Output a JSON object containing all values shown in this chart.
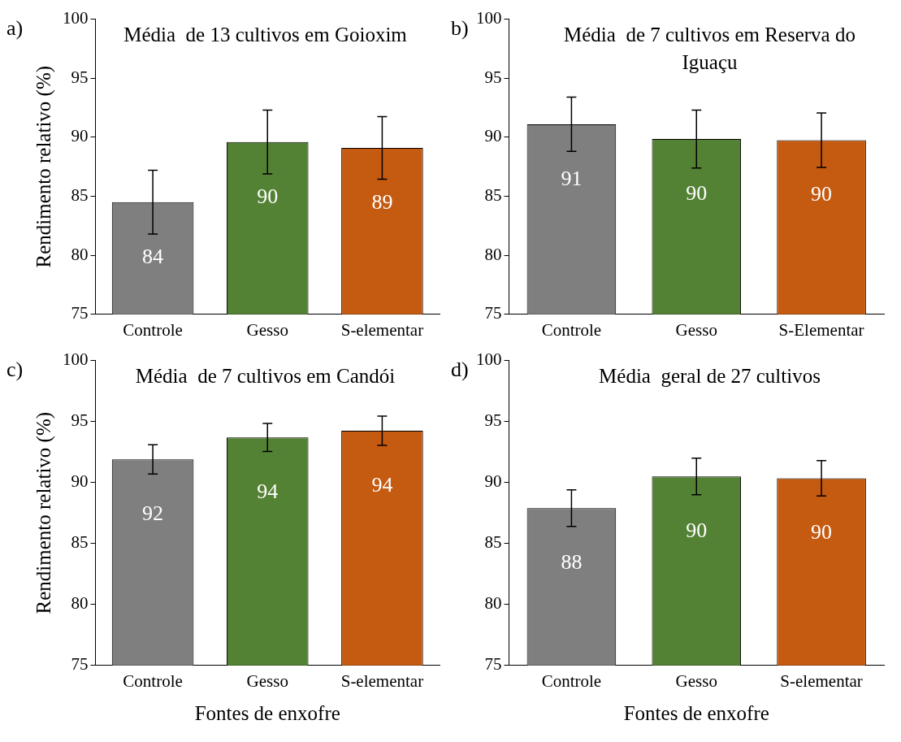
{
  "chart_data": [
    {
      "type": "bar",
      "title": "Média  de 13 cultivos em Goioxim",
      "ylabel": "Rendimento relativo (%)",
      "annotations": [
        "a)"
      ],
      "categories": [
        "Controle",
        "Gesso",
        "S-elementar"
      ],
      "values": [
        84.5,
        89.6,
        89.1
      ],
      "colors": [
        "#7f7f7f",
        "#548235",
        "#c55a11"
      ],
      "errors": [
        2.7,
        2.7,
        2.65
      ],
      "value_labels": [
        "84",
        "90",
        "89"
      ],
      "ylim": [
        75,
        100
      ],
      "yticks": [
        75,
        80,
        85,
        90,
        95,
        100
      ]
    },
    {
      "type": "bar",
      "title": "Média  de 7 cultivos em Reserva do Iguaçu",
      "annotations": [
        "b)"
      ],
      "categories": [
        "Controle",
        "Gesso",
        "S-Elementar"
      ],
      "values": [
        91.1,
        89.85,
        89.75
      ],
      "colors": [
        "#7f7f7f",
        "#548235",
        "#c55a11"
      ],
      "errors": [
        2.3,
        2.45,
        2.3
      ],
      "value_labels": [
        "91",
        "90",
        "90"
      ],
      "ylim": [
        75,
        100
      ],
      "yticks": [
        75,
        80,
        85,
        90,
        95,
        100
      ]
    },
    {
      "type": "bar",
      "title": "Média  de 7 cultivos em Candói",
      "ylabel": "Rendimento relativo (%)",
      "xlabel": "Fontes de enxofre",
      "annotations": [
        "c)"
      ],
      "categories": [
        "Controle",
        "Gesso",
        "S-elementar"
      ],
      "values": [
        91.9,
        93.7,
        94.25
      ],
      "colors": [
        "#7f7f7f",
        "#548235",
        "#c55a11"
      ],
      "errors": [
        1.2,
        1.15,
        1.2
      ],
      "value_labels": [
        "92",
        "94",
        "94"
      ],
      "ylim": [
        75,
        100
      ],
      "yticks": [
        75,
        80,
        85,
        90,
        95,
        100
      ]
    },
    {
      "type": "bar",
      "title": "Média  geral de 27 cultivos",
      "xlabel": "Fontes de enxofre",
      "annotations": [
        "d)"
      ],
      "categories": [
        "Controle",
        "Gesso",
        "S-elementar"
      ],
      "values": [
        87.9,
        90.5,
        90.35
      ],
      "colors": [
        "#7f7f7f",
        "#548235",
        "#c55a11"
      ],
      "errors": [
        1.5,
        1.5,
        1.45
      ],
      "value_labels": [
        "88",
        "90",
        "90"
      ],
      "ylim": [
        75,
        100
      ],
      "yticks": [
        75,
        80,
        85,
        90,
        95,
        100
      ]
    }
  ]
}
